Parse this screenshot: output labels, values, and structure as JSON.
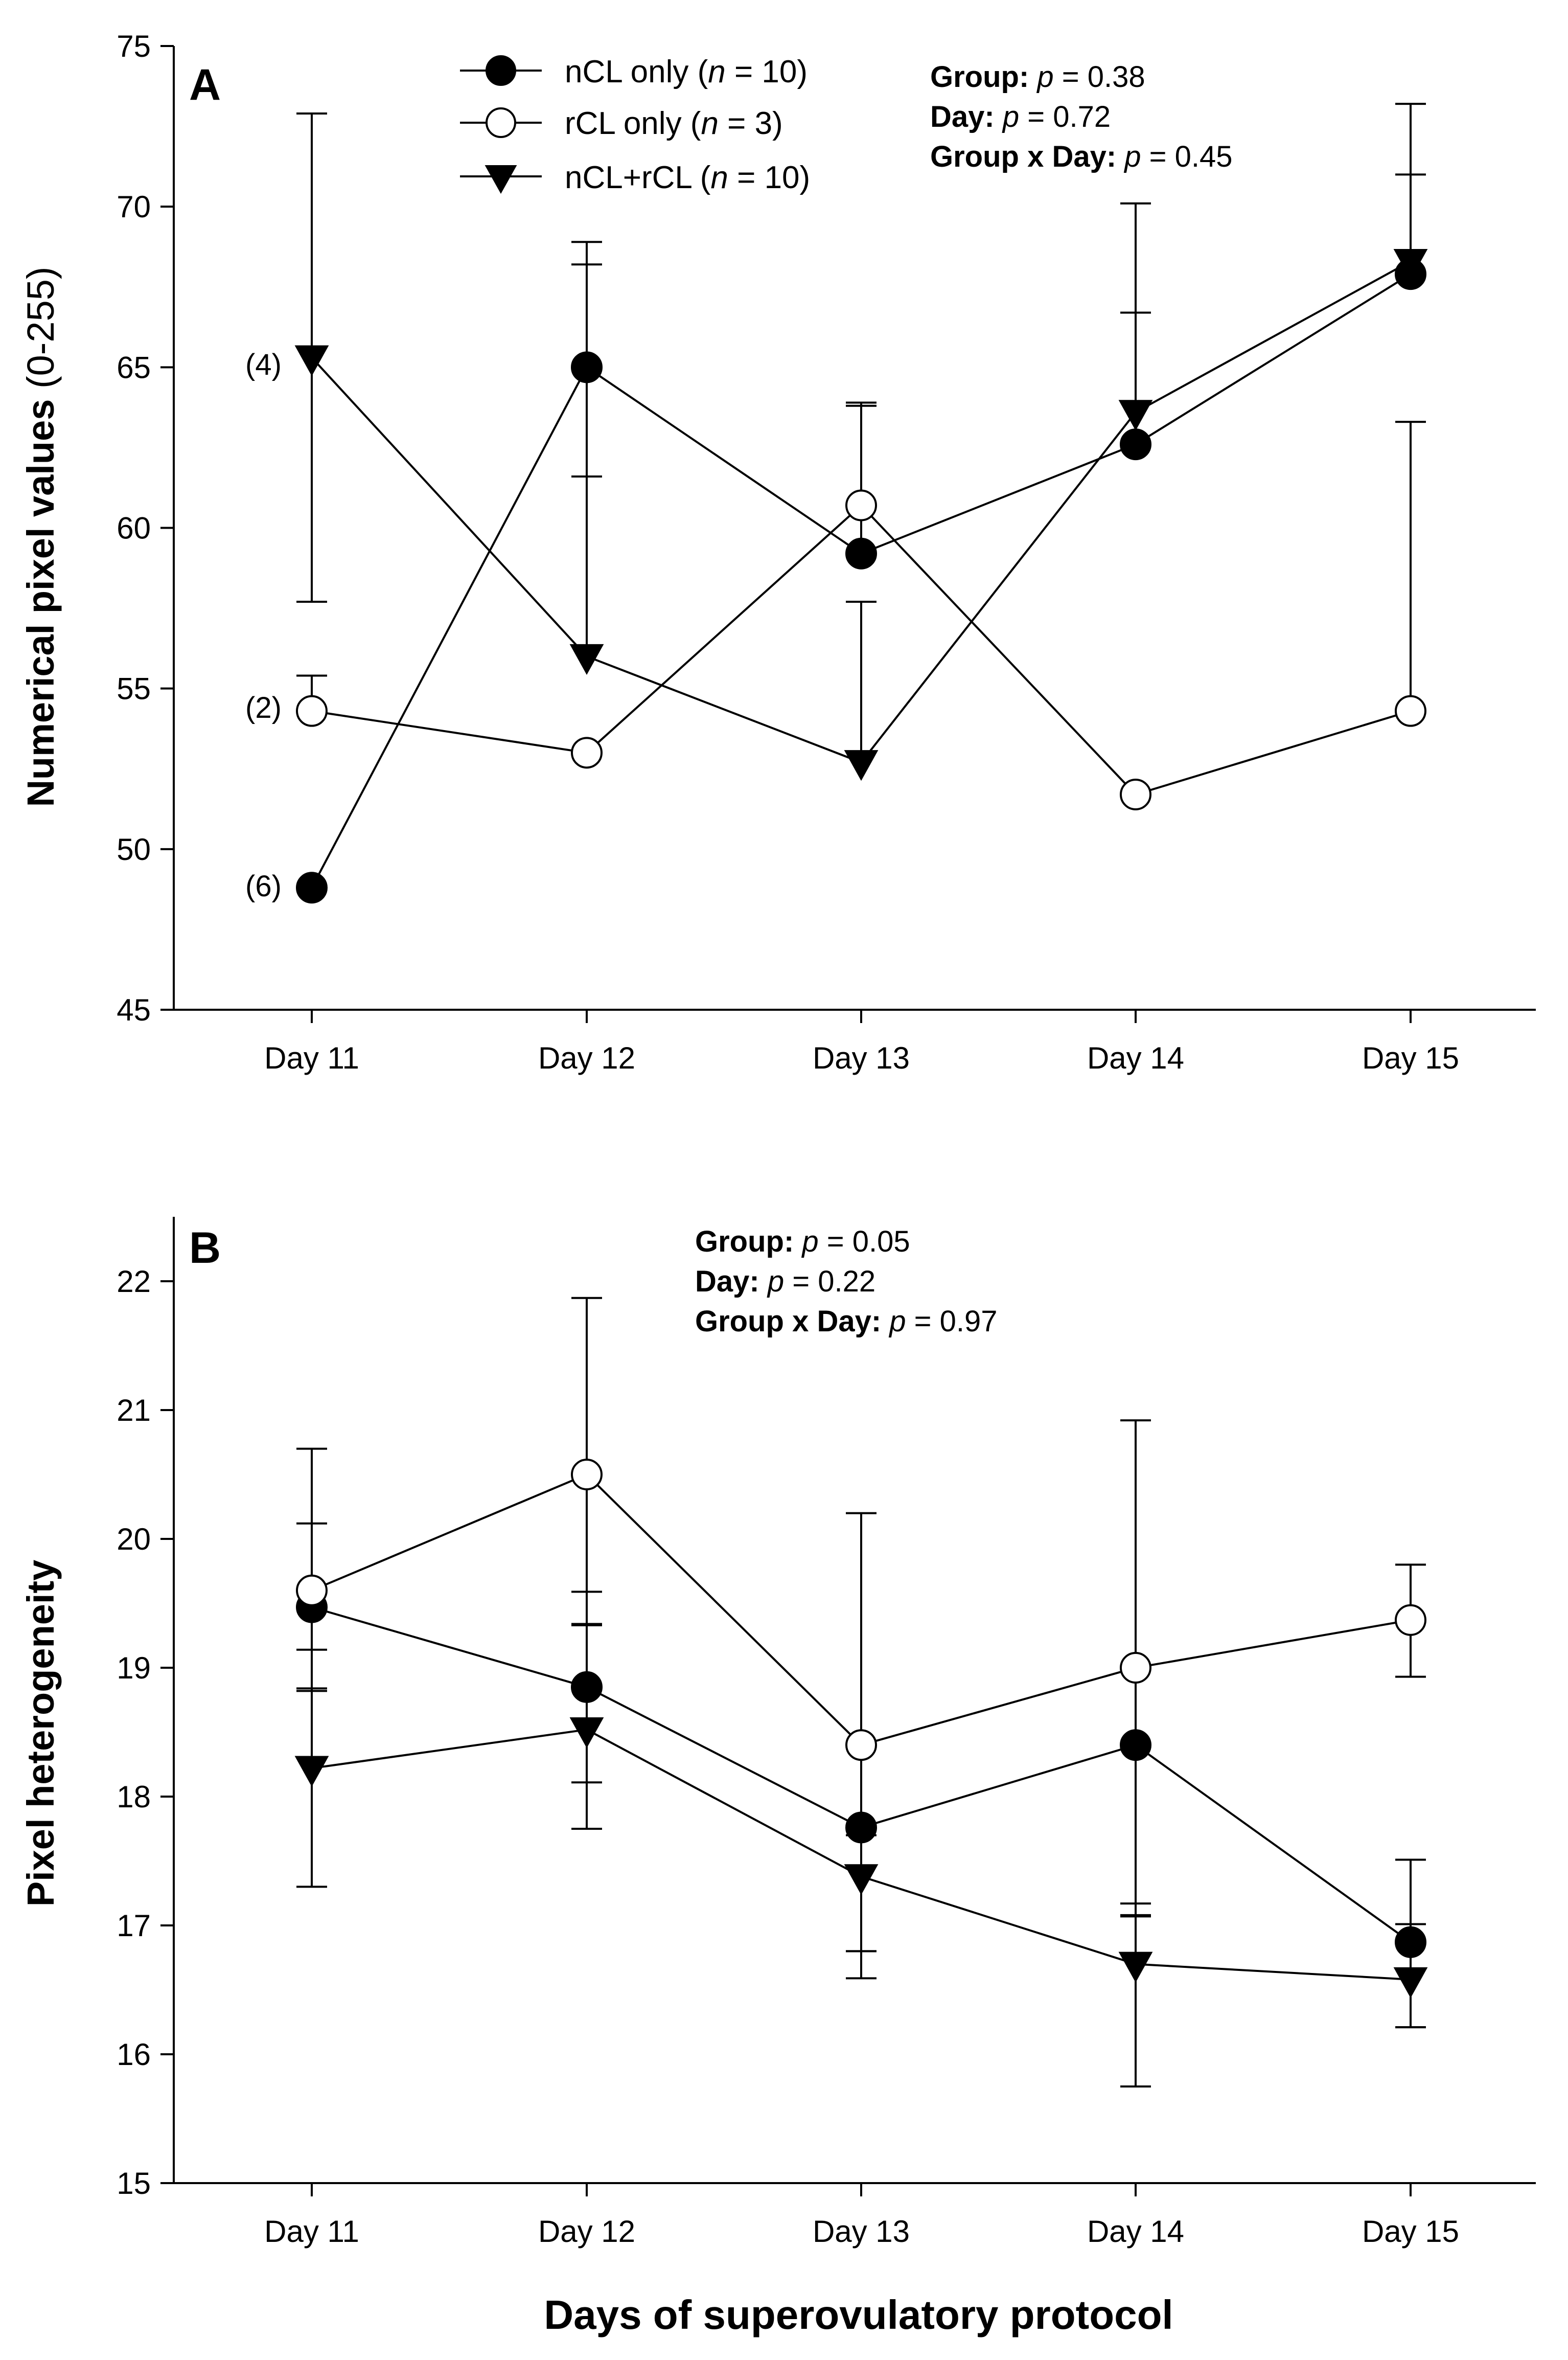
{
  "figure": {
    "x_title": "Days of superovulatory protocol"
  },
  "legend": [
    {
      "series": "nCL",
      "name": "nCL only (",
      "n_label": "n",
      "n_value": " = 10)"
    },
    {
      "series": "rCL",
      "name": "rCL only (",
      "n_label": "n",
      "n_value": " = 3)"
    },
    {
      "series": "both",
      "name": "nCL+rCL (",
      "n_label": "n",
      "n_value": " = 10)"
    }
  ],
  "chart_data": [
    {
      "panel": "A",
      "type": "line",
      "ylabel_bold": "Numerical pixel values",
      "ylabel_unit": " (0-255)",
      "xlabel": "",
      "categories": [
        "Day 11",
        "Day 12",
        "Day 13",
        "Day 14",
        "Day 15"
      ],
      "ylim": [
        45,
        75
      ],
      "yticks": [
        "45",
        "50",
        "55",
        "60",
        "65",
        "70",
        "75"
      ],
      "stats": [
        {
          "label": "Group:",
          "p": "p",
          "value": " = 0.38"
        },
        {
          "label": "Day:",
          "p": "p",
          "value": " = 0.72"
        },
        {
          "label": "Group x Day:",
          "p": "p",
          "value": " = 0.45"
        }
      ],
      "annotations": [
        {
          "text": "(4)",
          "series": "both",
          "index": 0
        },
        {
          "text": "(2)",
          "series": "rCL",
          "index": 0
        },
        {
          "text": "(6)",
          "series": "nCL",
          "index": 0
        }
      ],
      "series": [
        {
          "key": "nCL",
          "name": "nCL only",
          "marker": "filled-circle",
          "values": [
            48.8,
            65.0,
            59.2,
            62.6,
            67.9
          ],
          "err_up": [
            0,
            3.2,
            4.7,
            4.1,
            3.1
          ],
          "err_down": [
            0,
            3.4,
            0,
            0,
            0
          ]
        },
        {
          "key": "rCL",
          "name": "rCL only",
          "marker": "open-circle",
          "values": [
            54.3,
            53.0,
            60.7,
            51.7,
            54.3
          ],
          "err_up": [
            1.1,
            0,
            3.1,
            0,
            9.0
          ],
          "err_down": [
            0,
            0,
            0,
            0,
            0
          ]
        },
        {
          "key": "both",
          "name": "nCL+rCL",
          "marker": "filled-triangle-down",
          "values": [
            65.3,
            56.0,
            52.7,
            63.6,
            68.3
          ],
          "err_up": [
            7.6,
            12.9,
            5.0,
            6.5,
            4.9
          ],
          "err_down": [
            7.6,
            0,
            0,
            0,
            0
          ]
        }
      ]
    },
    {
      "panel": "B",
      "type": "line",
      "ylabel_bold": "Pixel heterogeneity",
      "ylabel_unit": "",
      "xlabel": "Days of superovulatory protocol",
      "categories": [
        "Day 11",
        "Day 12",
        "Day 13",
        "Day 14",
        "Day 15"
      ],
      "ylim": [
        15,
        22.5
      ],
      "yticks": [
        "15",
        "16",
        "17",
        "18",
        "19",
        "20",
        "21",
        "22"
      ],
      "stats": [
        {
          "label": "Group:",
          "p": "p",
          "value": " = 0.05"
        },
        {
          "label": "Day:",
          "p": "p",
          "value": " = 0.22"
        },
        {
          "label": "Group x Day:",
          "p": "p",
          "value": " = 0.97"
        }
      ],
      "annotations": [],
      "series": [
        {
          "key": "nCL",
          "name": "nCL only",
          "marker": "filled-circle",
          "values": [
            19.47,
            18.85,
            17.76,
            18.4,
            16.87
          ],
          "err_up": [
            0.65,
            0.74,
            0.0,
            0.0,
            0.64
          ],
          "err_down": [
            0.65,
            0.74,
            1.17,
            1.33,
            0.66
          ]
        },
        {
          "key": "rCL",
          "name": "rCL only",
          "marker": "open-circle",
          "values": [
            19.6,
            20.5,
            18.4,
            19.0,
            19.37
          ],
          "err_up": [
            1.1,
            1.37,
            1.8,
            1.92,
            0.43
          ],
          "err_down": [
            0.46,
            1.16,
            1.6,
            1.83,
            0.44
          ]
        },
        {
          "key": "both",
          "name": "nCL+rCL",
          "marker": "filled-triangle-down",
          "values": [
            18.22,
            18.52,
            17.38,
            16.7,
            16.58
          ],
          "err_up": [
            0.62,
            0.81,
            0.32,
            0.38,
            0.43
          ],
          "err_down": [
            0.92,
            0.77,
            0.58,
            0.95,
            0.37
          ]
        }
      ]
    }
  ]
}
